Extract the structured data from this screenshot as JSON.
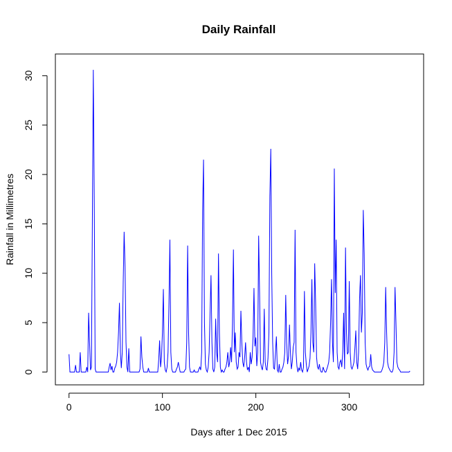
{
  "chart_data": {
    "type": "line",
    "title": "Daily Rainfall",
    "x_label": "Days after 1 Dec 2015",
    "y_label": "Rainfall in Millimetres",
    "color": "#0000ff",
    "x": [
      0,
      1,
      2,
      3,
      4,
      5,
      6,
      7,
      8,
      9,
      10,
      11,
      12,
      13,
      14,
      15,
      16,
      17,
      18,
      19,
      20,
      21,
      22,
      23,
      24,
      25,
      26,
      27,
      28,
      29,
      30,
      31,
      32,
      33,
      34,
      35,
      36,
      37,
      38,
      39,
      40,
      41,
      42,
      43,
      44,
      45,
      46,
      47,
      48,
      49,
      50,
      51,
      52,
      53,
      54,
      55,
      56,
      57,
      58,
      59,
      60,
      61,
      62,
      63,
      64,
      65,
      66,
      67,
      68,
      69,
      70,
      71,
      72,
      73,
      74,
      75,
      76,
      77,
      78,
      79,
      80,
      81,
      82,
      83,
      84,
      85,
      86,
      87,
      88,
      89,
      90,
      91,
      92,
      93,
      94,
      95,
      96,
      97,
      98,
      99,
      100,
      101,
      102,
      103,
      104,
      105,
      106,
      107,
      108,
      109,
      110,
      111,
      112,
      113,
      114,
      115,
      116,
      117,
      118,
      119,
      120,
      121,
      122,
      123,
      124,
      125,
      126,
      127,
      128,
      129,
      130,
      131,
      132,
      133,
      134,
      135,
      136,
      137,
      138,
      139,
      140,
      141,
      142,
      143,
      144,
      145,
      146,
      147,
      148,
      149,
      150,
      151,
      152,
      153,
      154,
      155,
      156,
      157,
      158,
      159,
      160,
      161,
      162,
      163,
      164,
      165,
      166,
      167,
      168,
      169,
      170,
      171,
      172,
      173,
      174,
      175,
      176,
      177,
      178,
      179,
      180,
      181,
      182,
      183,
      184,
      185,
      186,
      187,
      188,
      189,
      190,
      191,
      192,
      193,
      194,
      195,
      196,
      197,
      198,
      199,
      200,
      201,
      202,
      203,
      204,
      205,
      206,
      207,
      208,
      209,
      210,
      211,
      212,
      213,
      214,
      215,
      216,
      217,
      218,
      219,
      220,
      221,
      222,
      223,
      224,
      225,
      226,
      227,
      228,
      229,
      230,
      231,
      232,
      233,
      234,
      235,
      236,
      237,
      238,
      239,
      240,
      241,
      242,
      243,
      244,
      245,
      246,
      247,
      248,
      249,
      250,
      251,
      252,
      253,
      254,
      255,
      256,
      257,
      258,
      259,
      260,
      261,
      262,
      263,
      264,
      265,
      266,
      267,
      268,
      269,
      270,
      271,
      272,
      273,
      274,
      275,
      276,
      277,
      278,
      279,
      280,
      281,
      282,
      283,
      284,
      285,
      286,
      287,
      288,
      289,
      290,
      291,
      292,
      293,
      294,
      295,
      296,
      297,
      298,
      299,
      300,
      301,
      302,
      303,
      304,
      305,
      306,
      307,
      308,
      309,
      310,
      311,
      312,
      313,
      314,
      315,
      316,
      317,
      318,
      319,
      320,
      321,
      322,
      323,
      324,
      325,
      326,
      327,
      328,
      329,
      330,
      331,
      332,
      333,
      334,
      335,
      336,
      337,
      338,
      339,
      340,
      341,
      342,
      343,
      344,
      345,
      346,
      347,
      348,
      349,
      350,
      351,
      352,
      353,
      354,
      355,
      356,
      357,
      358,
      359,
      360,
      361,
      362,
      363,
      364,
      365
    ],
    "values": [
      1.8,
      0,
      0,
      0,
      0,
      0,
      0,
      0.7,
      0,
      0,
      0,
      0,
      2,
      0,
      0,
      0,
      0,
      0,
      0,
      0.5,
      0,
      6,
      3,
      0.2,
      0.5,
      15.3,
      30.6,
      17.8,
      0.3,
      0,
      0,
      0,
      0,
      0,
      0,
      0,
      0,
      0,
      0,
      0,
      0,
      0,
      0,
      0.5,
      0.9,
      0.2,
      0.6,
      0,
      0,
      0.4,
      0.6,
      1,
      2,
      4,
      7,
      2,
      0.4,
      2,
      9,
      14.2,
      10.6,
      3,
      0.5,
      0,
      2.4,
      0,
      0,
      0,
      0,
      0,
      0,
      0,
      0,
      0,
      0,
      0,
      0.3,
      3.6,
      1.5,
      0.5,
      0,
      0,
      0,
      0,
      0,
      0.4,
      0,
      0,
      0,
      0,
      0,
      0,
      0,
      0,
      0,
      0,
      1.2,
      3.2,
      0.5,
      1.5,
      4,
      8.4,
      1,
      0.2,
      0,
      0.5,
      2,
      7,
      13.4,
      2,
      0.3,
      0,
      0,
      0,
      0,
      0.3,
      0.5,
      1,
      0.5,
      0,
      0,
      0,
      0,
      0,
      0.2,
      0.3,
      3,
      12.8,
      4,
      0.5,
      0,
      0,
      0,
      0,
      0.2,
      0,
      0,
      0,
      0,
      0.3,
      0.5,
      0.2,
      2,
      16.2,
      21.5,
      5,
      0.8,
      0.2,
      0,
      0.5,
      2,
      6,
      9.8,
      3,
      0.3,
      0,
      0.5,
      5.4,
      2,
      1,
      12,
      4,
      0.5,
      0,
      0.2,
      0,
      0,
      0.3,
      0.5,
      1,
      2,
      0.5,
      1,
      2.5,
      1,
      5,
      12.4,
      2,
      4,
      1,
      0.3,
      0.5,
      2,
      1.5,
      6.2,
      3,
      1,
      0.5,
      1.5,
      3,
      1,
      0.2,
      0.5,
      0,
      2,
      0.8,
      1.5,
      3.5,
      8.5,
      2.6,
      3.5,
      0.6,
      2,
      13.8,
      8,
      1,
      0.5,
      0.2,
      1,
      6.4,
      1,
      0.3,
      0.2,
      1.4,
      4,
      17.8,
      22.6,
      10,
      3,
      0.4,
      0.3,
      2,
      3.6,
      0.2,
      0,
      0.8,
      0,
      0,
      0.3,
      0.5,
      1,
      2,
      7.8,
      3,
      0.8,
      1.6,
      4.8,
      2,
      0.3,
      1,
      2.5,
      3,
      14.4,
      2,
      0.6,
      0,
      0.4,
      0.2,
      1,
      0.2,
      0,
      0.5,
      8.2,
      2,
      0.8,
      0,
      0.3,
      0.6,
      1.4,
      4,
      9.4,
      3,
      2,
      11,
      7,
      1.5,
      0.5,
      0.3,
      0.8,
      0.2,
      0,
      0,
      0.5,
      0.2,
      0,
      0,
      0.3,
      0.6,
      1,
      2,
      5,
      9.4,
      3,
      1,
      20.6,
      8,
      13.4,
      2,
      0.5,
      0.3,
      1,
      1.2,
      0.5,
      2,
      6,
      0.3,
      12.6,
      4,
      1.8,
      2,
      9.2,
      2,
      0.5,
      0.3,
      0.6,
      1,
      2.4,
      4.2,
      1,
      0.3,
      2,
      7.4,
      9.8,
      4,
      6,
      16.4,
      12,
      3,
      0.8,
      0.4,
      0.2,
      0.5,
      0.6,
      1.8,
      0.5,
      0.2,
      0.1,
      0,
      0,
      0,
      0,
      0,
      0,
      0,
      0,
      0.2,
      0.5,
      1,
      3,
      8.6,
      4,
      1,
      0.5,
      0.3,
      0.1,
      0,
      0,
      0.3,
      2,
      8.6,
      5,
      1,
      0.5,
      0.3,
      0.2,
      0,
      0,
      0,
      0,
      0,
      0,
      0,
      0,
      0,
      0,
      0.1
    ],
    "xlim": [
      -14.6,
      379.6
    ],
    "ylim": [
      -1.3,
      32.2
    ],
    "xticks": [
      0,
      100,
      200,
      300
    ],
    "yticks": [
      0,
      5,
      10,
      15,
      20,
      25,
      30
    ]
  }
}
